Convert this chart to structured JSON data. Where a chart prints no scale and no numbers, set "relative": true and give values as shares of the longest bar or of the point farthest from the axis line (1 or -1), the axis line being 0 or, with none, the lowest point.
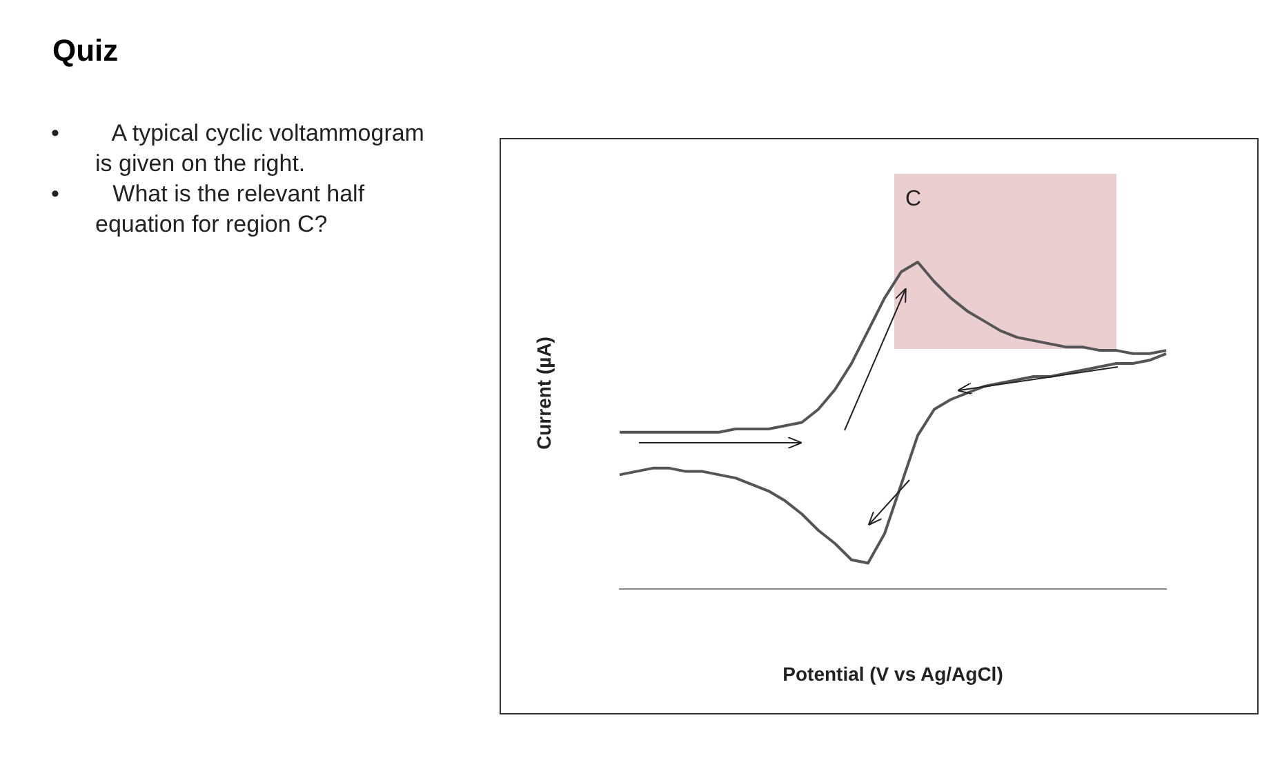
{
  "chart_data": {
    "type": "line",
    "title": "Quiz",
    "xlabel": "Potential (V vs Ag/AgCl)",
    "ylabel": "Current (µA)",
    "relative": true,
    "legend": false,
    "grid": false,
    "marker": "none",
    "line_style": "solid",
    "annotations": [
      "• A typical cyclic voltammogram is given on the right.",
      "• What is the relevant half equation for region C?",
      "C"
    ],
    "categories": [
      null,
      null,
      null,
      null,
      null,
      null,
      null,
      null,
      null,
      null,
      null,
      null,
      null,
      null,
      null,
      null,
      null,
      null,
      null,
      null,
      null,
      null,
      null,
      null,
      null,
      null,
      null,
      null,
      null,
      null,
      null,
      null,
      null,
      null
    ],
    "series": [
      {
        "color": "#555555",
        "values": [
          0.48,
          0.48,
          0.48,
          0.48,
          0.48,
          0.48,
          0.48,
          0.49,
          0.49,
          0.49,
          0.5,
          0.51,
          0.55,
          0.61,
          0.69,
          0.79,
          0.89,
          0.97,
          1.0,
          0.94,
          0.89,
          0.85,
          0.82,
          0.79,
          0.77,
          0.76,
          0.75,
          0.74,
          0.74,
          0.73,
          0.73,
          0.72,
          0.72,
          0.73
        ]
      },
      {
        "color": "#555555",
        "values": [
          0.35,
          0.36,
          0.37,
          0.37,
          0.36,
          0.36,
          0.35,
          0.34,
          0.32,
          0.3,
          0.27,
          0.23,
          0.18,
          0.14,
          0.09,
          0.08,
          0.17,
          0.32,
          0.47,
          0.55,
          0.58,
          0.6,
          0.62,
          0.63,
          0.64,
          0.65,
          0.65,
          0.66,
          0.67,
          0.68,
          0.69,
          0.69,
          0.7,
          0.72
        ]
      }
    ]
  }
}
